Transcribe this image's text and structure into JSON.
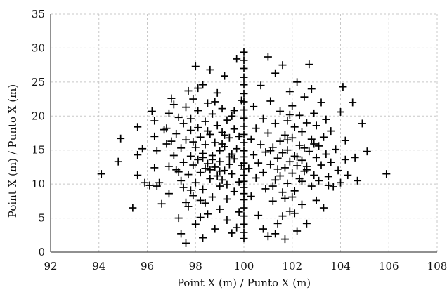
{
  "chart_data": {
    "type": "scatter",
    "title": "",
    "xlabel": "Point X (m) / Punto X (m)",
    "ylabel": "Point X (m) / Punto X (m)",
    "xlim": [
      92,
      108
    ],
    "ylim": [
      0,
      35
    ],
    "xticks": [
      "92",
      "94",
      "96",
      "98",
      "100",
      "102",
      "104",
      "106",
      "108"
    ],
    "yticks": [
      "0",
      "5",
      "10",
      "15",
      "20",
      "25",
      "30",
      "35"
    ],
    "grid": true,
    "marker": "plus",
    "marker_color": "#000000",
    "series": [
      {
        "points": [
          [
            94.1,
            11.5
          ],
          [
            94.9,
            16.7
          ],
          [
            94.8,
            13.3
          ],
          [
            95.4,
            6.5
          ],
          [
            95.6,
            18.4
          ],
          [
            95.6,
            14.3
          ],
          [
            95.6,
            11.3
          ],
          [
            95.8,
            15.2
          ],
          [
            95.9,
            10.2
          ],
          [
            96.1,
            9.8
          ],
          [
            96.2,
            20.7
          ],
          [
            96.3,
            17.0
          ],
          [
            96.3,
            19.3
          ],
          [
            96.3,
            12.4
          ],
          [
            96.4,
            9.7
          ],
          [
            96.4,
            14.9
          ],
          [
            96.5,
            10.2
          ],
          [
            96.6,
            7.1
          ],
          [
            96.7,
            18.0
          ],
          [
            96.8,
            15.9
          ],
          [
            96.8,
            18.2
          ],
          [
            96.9,
            12.6
          ],
          [
            96.9,
            8.6
          ],
          [
            96.9,
            20.4
          ],
          [
            97.0,
            22.6
          ],
          [
            97.0,
            16.3
          ],
          [
            97.1,
            21.7
          ],
          [
            97.1,
            14.2
          ],
          [
            97.2,
            17.4
          ],
          [
            97.2,
            12.1
          ],
          [
            97.3,
            19.8
          ],
          [
            97.3,
            5.0
          ],
          [
            97.4,
            2.7
          ],
          [
            97.4,
            10.5
          ],
          [
            97.4,
            15.3
          ],
          [
            97.5,
            18.9
          ],
          [
            97.5,
            13.2
          ],
          [
            97.5,
            9.5
          ],
          [
            97.6,
            21.3
          ],
          [
            97.6,
            1.3
          ],
          [
            97.6,
            16.5
          ],
          [
            97.7,
            23.7
          ],
          [
            97.7,
            11.4
          ],
          [
            97.7,
            6.7
          ],
          [
            97.8,
            14.1
          ],
          [
            97.8,
            17.9
          ],
          [
            97.8,
            19.6
          ],
          [
            97.9,
            8.3
          ],
          [
            97.9,
            12.8
          ],
          [
            97.9,
            22.5
          ],
          [
            98.0,
            15.4
          ],
          [
            98.0,
            10.2
          ],
          [
            98.0,
            27.3
          ],
          [
            98.0,
            4.1
          ],
          [
            98.1,
            13.6
          ],
          [
            98.1,
            18.3
          ],
          [
            98.1,
            20.8
          ],
          [
            98.2,
            11.7
          ],
          [
            98.2,
            16.9
          ],
          [
            98.2,
            7.6
          ],
          [
            98.3,
            14.5
          ],
          [
            98.3,
            24.6
          ],
          [
            98.3,
            9.2
          ],
          [
            98.3,
            2.1
          ],
          [
            98.4,
            12.3
          ],
          [
            98.4,
            19.2
          ],
          [
            98.4,
            15.8
          ],
          [
            98.5,
            21.9
          ],
          [
            98.5,
            13.0
          ],
          [
            98.5,
            5.6
          ],
          [
            98.6,
            10.8
          ],
          [
            98.6,
            17.3
          ],
          [
            98.6,
            26.8
          ],
          [
            98.7,
            14.2
          ],
          [
            98.7,
            8.1
          ],
          [
            98.7,
            20.3
          ],
          [
            98.8,
            12.5
          ],
          [
            98.8,
            16.1
          ],
          [
            98.8,
            3.4
          ],
          [
            98.9,
            18.6
          ],
          [
            98.9,
            11.2
          ],
          [
            98.9,
            23.4
          ],
          [
            99.0,
            14.9
          ],
          [
            99.0,
            9.7
          ],
          [
            99.0,
            6.3
          ],
          [
            99.0,
            13.3
          ],
          [
            99.1,
            17.6
          ],
          [
            99.1,
            21.1
          ],
          [
            99.1,
            10.6
          ],
          [
            99.2,
            15.5
          ],
          [
            99.2,
            25.9
          ],
          [
            99.2,
            12.0
          ],
          [
            99.3,
            7.8
          ],
          [
            99.3,
            19.4
          ],
          [
            99.3,
            4.7
          ],
          [
            99.4,
            14.0
          ],
          [
            99.4,
            16.8
          ],
          [
            99.5,
            11.5
          ],
          [
            99.5,
            20.0
          ],
          [
            99.5,
            2.8
          ],
          [
            99.6,
            13.7
          ],
          [
            99.6,
            18.1
          ],
          [
            99.6,
            8.9
          ],
          [
            99.7,
            28.4
          ],
          [
            99.7,
            15.2
          ],
          [
            99.8,
            10.3
          ],
          [
            99.8,
            17.0
          ],
          [
            99.8,
            5.9
          ],
          [
            99.9,
            12.7
          ],
          [
            99.9,
            22.3
          ],
          [
            97.3,
            11.8
          ],
          [
            97.6,
            7.3
          ],
          [
            97.9,
            16.2
          ],
          [
            98.1,
            24.1
          ],
          [
            98.2,
            5.1
          ],
          [
            98.4,
            7.2
          ],
          [
            98.5,
            17.8
          ],
          [
            98.7,
            13.6
          ],
          [
            98.8,
            22.1
          ],
          [
            99.0,
            11.9
          ],
          [
            99.1,
            15.9
          ],
          [
            99.3,
            9.9
          ],
          [
            99.4,
            12.9
          ],
          [
            99.5,
            14.4
          ],
          [
            99.6,
            20.8
          ],
          [
            99.7,
            3.6
          ],
          [
            98.6,
            12.1
          ],
          [
            98.3,
            13.9
          ],
          [
            97.8,
            9.1
          ],
          [
            99.2,
            17.2
          ],
          [
            100.0,
            29.4
          ],
          [
            100.0,
            28.2
          ],
          [
            100.0,
            27.0
          ],
          [
            100.0,
            25.7
          ],
          [
            100.0,
            24.6
          ],
          [
            100.0,
            23.3
          ],
          [
            100.0,
            22.1
          ],
          [
            100.0,
            20.9
          ],
          [
            100.0,
            19.7
          ],
          [
            100.0,
            18.5
          ],
          [
            100.0,
            17.3
          ],
          [
            100.0,
            16.1
          ],
          [
            100.0,
            14.9
          ],
          [
            100.0,
            14.0
          ],
          [
            100.0,
            13.1
          ],
          [
            100.0,
            12.2
          ],
          [
            100.0,
            11.3
          ],
          [
            100.0,
            10.4
          ],
          [
            100.0,
            9.5
          ],
          [
            100.0,
            8.6
          ],
          [
            100.0,
            7.7
          ],
          [
            100.0,
            6.5
          ],
          [
            100.0,
            5.3
          ],
          [
            100.0,
            4.1
          ],
          [
            100.0,
            2.9
          ],
          [
            100.0,
            2.0
          ],
          [
            100.2,
            12.3
          ],
          [
            100.3,
            16.6
          ],
          [
            100.3,
            8.2
          ],
          [
            100.4,
            14.3
          ],
          [
            100.4,
            21.4
          ],
          [
            100.5,
            10.9
          ],
          [
            100.5,
            18.2
          ],
          [
            100.6,
            13.1
          ],
          [
            100.6,
            5.4
          ],
          [
            100.7,
            15.8
          ],
          [
            100.7,
            24.5
          ],
          [
            100.8,
            11.7
          ],
          [
            100.8,
            19.6
          ],
          [
            100.9,
            9.3
          ],
          [
            100.9,
            14.7
          ],
          [
            101.0,
            17.5
          ],
          [
            101.0,
            28.7
          ],
          [
            101.0,
            2.3
          ],
          [
            101.1,
            12.9
          ],
          [
            101.1,
            22.2
          ],
          [
            101.2,
            15.4
          ],
          [
            101.2,
            7.5
          ],
          [
            101.3,
            10.6
          ],
          [
            101.3,
            18.9
          ],
          [
            101.3,
            26.3
          ],
          [
            101.4,
            13.8
          ],
          [
            101.4,
            4.2
          ],
          [
            101.5,
            16.3
          ],
          [
            101.5,
            11.2
          ],
          [
            101.5,
            20.7
          ],
          [
            101.6,
            14.6
          ],
          [
            101.6,
            8.8
          ],
          [
            101.6,
            27.5
          ],
          [
            101.7,
            17.2
          ],
          [
            101.7,
            12.4
          ],
          [
            101.7,
            1.9
          ],
          [
            101.8,
            19.3
          ],
          [
            101.8,
            15.0
          ],
          [
            101.8,
            10.1
          ],
          [
            101.9,
            23.6
          ],
          [
            101.9,
            13.3
          ],
          [
            101.9,
            6.0
          ],
          [
            102.0,
            16.8
          ],
          [
            102.0,
            11.6
          ],
          [
            102.0,
            21.5
          ],
          [
            102.1,
            14.1
          ],
          [
            102.1,
            9.0
          ],
          [
            102.1,
            18.4
          ],
          [
            102.2,
            12.7
          ],
          [
            102.2,
            25.0
          ],
          [
            102.2,
            3.1
          ],
          [
            102.3,
            15.7
          ],
          [
            102.3,
            20.1
          ],
          [
            102.3,
            10.8
          ],
          [
            102.4,
            13.5
          ],
          [
            102.4,
            17.7
          ],
          [
            102.4,
            7.0
          ],
          [
            102.5,
            22.8
          ],
          [
            102.5,
            11.9
          ],
          [
            102.5,
            15.3
          ],
          [
            102.6,
            19.0
          ],
          [
            102.6,
            4.2
          ],
          [
            102.6,
            12.6
          ],
          [
            102.7,
            27.6
          ],
          [
            102.7,
            14.8
          ],
          [
            102.8,
            9.7
          ],
          [
            102.8,
            16.6
          ],
          [
            102.8,
            24.0
          ],
          [
            102.9,
            11.3
          ],
          [
            102.9,
            20.4
          ],
          [
            103.0,
            13.9
          ],
          [
            103.0,
            7.6
          ],
          [
            103.0,
            18.6
          ],
          [
            103.1,
            15.6
          ],
          [
            103.1,
            10.5
          ],
          [
            103.2,
            22.0
          ],
          [
            103.2,
            12.8
          ],
          [
            103.3,
            16.9
          ],
          [
            103.3,
            6.5
          ],
          [
            103.4,
            14.4
          ],
          [
            103.4,
            19.5
          ],
          [
            103.5,
            11.1
          ],
          [
            103.6,
            13.2
          ],
          [
            103.6,
            17.8
          ],
          [
            103.7,
            9.6
          ],
          [
            103.8,
            15.1
          ],
          [
            103.9,
            12.0
          ],
          [
            104.0,
            20.6
          ],
          [
            104.0,
            10.2
          ],
          [
            104.1,
            24.3
          ],
          [
            104.2,
            13.6
          ],
          [
            104.2,
            16.4
          ],
          [
            104.3,
            11.3
          ],
          [
            104.5,
            22.0
          ],
          [
            104.6,
            13.9
          ],
          [
            104.7,
            10.5
          ],
          [
            104.9,
            18.9
          ],
          [
            105.1,
            14.8
          ],
          [
            105.9,
            11.5
          ],
          [
            101.2,
            9.7
          ],
          [
            101.4,
            12.2
          ],
          [
            101.6,
            5.3
          ],
          [
            101.8,
            16.5
          ],
          [
            102.0,
            8.1
          ],
          [
            102.2,
            14.0
          ],
          [
            102.4,
            10.4
          ],
          [
            101.1,
            14.9
          ],
          [
            101.9,
            20.2
          ],
          [
            102.6,
            12.1
          ],
          [
            100.8,
            3.4
          ],
          [
            101.3,
            2.7
          ],
          [
            102.1,
            5.7
          ],
          [
            101.7,
            7.9
          ],
          [
            103.5,
            9.8
          ],
          [
            102.9,
            15.9
          ]
        ]
      }
    ]
  }
}
